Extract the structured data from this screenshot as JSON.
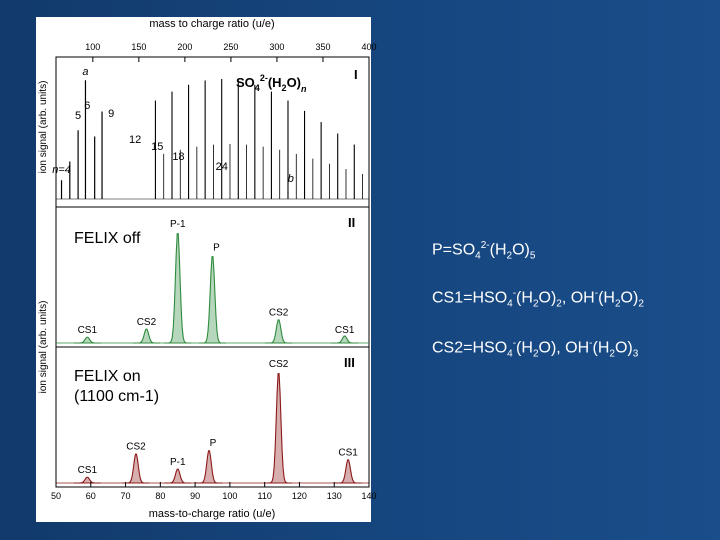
{
  "chart_data": [
    {
      "type": "line",
      "panel": "I",
      "title": "SO4 2-(H2O)n",
      "title_parts": {
        "base": "SO",
        "sub1": "4",
        "sup1": "2-",
        "mid": "(H",
        "sub2": "2",
        "end": "O)",
        "subn": "n"
      },
      "xlabel": "mass to charge ratio (u/e)",
      "ylabel": "ion signal (arb. units)",
      "xlim": [
        60,
        400
      ],
      "x_ticks": [
        "100",
        "150",
        "200",
        "250",
        "300",
        "350",
        "400"
      ],
      "series": [
        {
          "x": [
            168,
            186,
            204,
            222,
            240,
            258,
            276,
            294,
            312,
            330,
            348
          ],
          "y": [
            0.45,
            0.6,
            0.85,
            0.7,
            0.62,
            0.52,
            0.44,
            0.36,
            0.28,
            0.2,
            0.14
          ]
        }
      ],
      "annotations": [
        {
          "text": "a",
          "x": 92
        },
        {
          "text": "5",
          "x": 84
        },
        {
          "text": "6",
          "x": 94
        },
        {
          "text": "9",
          "x": 120
        },
        {
          "text": "12",
          "x": 146
        },
        {
          "text": "15",
          "x": 170
        },
        {
          "text": "18",
          "x": 193
        },
        {
          "text": "24",
          "x": 240
        },
        {
          "text": "n=4",
          "x": 66
        },
        {
          "text": "b",
          "x": 315
        }
      ],
      "panel_label": "I"
    },
    {
      "type": "line",
      "panel": "II",
      "legend_text": "FELIX off",
      "xlim": [
        50,
        140
      ],
      "peaks": [
        {
          "label": "CS1",
          "x": 59,
          "height": 0.05
        },
        {
          "label": "CS2",
          "x": 76,
          "height": 0.12
        },
        {
          "label": "P-1",
          "x": 85,
          "height": 0.95
        },
        {
          "label": "P",
          "x": 95,
          "height": 0.75
        },
        {
          "label": "CS2",
          "x": 114,
          "height": 0.2
        },
        {
          "label": "CS1",
          "x": 133,
          "height": 0.06
        }
      ],
      "panel_label": "II"
    },
    {
      "type": "line",
      "panel": "III",
      "legend_text_lines": [
        "FELIX on",
        "(1100 cm-1)"
      ],
      "xlabel": "mass-to-charge ratio (u/e)",
      "ylabel": "ion signal (arb. units)",
      "xlim": [
        50,
        140
      ],
      "x_ticks": [
        "50",
        "60",
        "70",
        "80",
        "90",
        "100",
        "110",
        "120",
        "130",
        "140"
      ],
      "peaks": [
        {
          "label": "CS1",
          "x": 59,
          "height": 0.05
        },
        {
          "label": "CS2",
          "x": 73,
          "height": 0.25
        },
        {
          "label": "P-1",
          "x": 85,
          "height": 0.12
        },
        {
          "label": "P",
          "x": 94,
          "height": 0.28
        },
        {
          "label": "CS2",
          "x": 114,
          "height": 0.95
        },
        {
          "label": "CS1",
          "x": 134,
          "height": 0.2
        }
      ],
      "panel_label": "III"
    }
  ],
  "colors": {
    "background": "#16467f",
    "panel_I": "#000000",
    "panel_II": "#2e8b3e",
    "panel_III": "#8b1a1a"
  },
  "right_text": {
    "line1": {
      "a": "P=SO",
      "b": "4",
      "c": "2-",
      "d": "(H",
      "e": "2",
      "f": "O)",
      "g": "5"
    },
    "line2": {
      "a": "CS1=HSO",
      "b": "4",
      "c": "-",
      "d": "(H",
      "e": "2",
      "f": "O)",
      "g": "2",
      "h": ", OH",
      "i": "-",
      "j": "(H",
      "k": "2",
      "l": "O)",
      "m": "2"
    },
    "line3": {
      "a": "CS2=HSO",
      "b": "4",
      "c": "-",
      "d": "(H",
      "e": "2",
      "f": "O), OH",
      "g": "-",
      "h": "(H",
      "i": "2",
      "j": "O)",
      "k": "3"
    }
  }
}
